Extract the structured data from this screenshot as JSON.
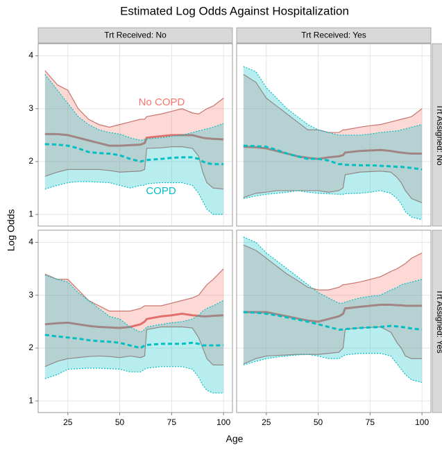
{
  "chart_data": {
    "type": "band",
    "title": "Estimated Log Odds Against Hospitalization",
    "xlabel": "Age",
    "ylabel": "Log Odds",
    "col_labels": [
      "Trt Received: No",
      "Trt Received: Yes"
    ],
    "row_labels": [
      "Trt Assigned: No",
      "Trt Assigned: Yes"
    ],
    "xlim": [
      10.7,
      104.3
    ],
    "xticks": [
      25,
      50,
      75,
      100
    ],
    "ylim": [
      0.78,
      4.23
    ],
    "yticks": [
      1,
      2,
      3,
      4
    ],
    "grid": true,
    "series": [
      {
        "name": "No COPD",
        "color": "#f8766d"
      },
      {
        "name": "COPD",
        "color": "#00bfc4"
      }
    ],
    "x": [
      14,
      20,
      25,
      30,
      35,
      40,
      45,
      50,
      55,
      60,
      62,
      63,
      70,
      75,
      80,
      85,
      88,
      90,
      92,
      95,
      100
    ],
    "panels": [
      {
        "groups": [
          {
            "estimate": [
              2.52,
              2.52,
              2.5,
              2.45,
              2.4,
              2.35,
              2.3,
              2.3,
              2.31,
              2.32,
              2.35,
              2.45,
              2.48,
              2.5,
              2.5,
              2.5,
              2.47,
              2.45,
              2.44,
              2.43,
              2.42
            ],
            "upper": [
              3.72,
              3.45,
              3.35,
              3.0,
              2.8,
              2.7,
              2.65,
              2.7,
              2.75,
              2.8,
              2.8,
              2.85,
              2.9,
              2.95,
              3.0,
              2.92,
              2.9,
              2.95,
              3.0,
              3.05,
              3.2
            ],
            "lower": [
              1.72,
              1.8,
              1.85,
              1.85,
              1.85,
              1.85,
              1.83,
              1.8,
              1.81,
              1.82,
              1.85,
              2.25,
              2.26,
              2.28,
              2.28,
              2.25,
              2.1,
              1.8,
              1.6,
              1.5,
              1.48
            ]
          },
          {
            "estimate": [
              2.33,
              2.32,
              2.3,
              2.25,
              2.18,
              2.16,
              2.15,
              2.12,
              2.05,
              2.0,
              2.02,
              2.03,
              2.05,
              2.07,
              2.08,
              2.08,
              2.05,
              2.0,
              1.97,
              1.95,
              1.95
            ],
            "upper": [
              3.65,
              3.35,
              3.1,
              2.85,
              2.7,
              2.6,
              2.55,
              2.52,
              2.45,
              2.4,
              2.42,
              2.43,
              2.45,
              2.48,
              2.5,
              2.55,
              2.58,
              2.6,
              2.62,
              2.65,
              2.72
            ],
            "lower": [
              1.48,
              1.55,
              1.6,
              1.62,
              1.62,
              1.61,
              1.6,
              1.55,
              1.5,
              1.55,
              1.55,
              1.58,
              1.6,
              1.6,
              1.6,
              1.55,
              1.4,
              1.25,
              1.1,
              1.0,
              1.0
            ]
          }
        ]
      },
      {
        "groups": [
          {
            "estimate": [
              2.28,
              2.27,
              2.25,
              2.2,
              2.15,
              2.1,
              2.07,
              2.05,
              2.08,
              2.1,
              2.12,
              2.17,
              2.2,
              2.21,
              2.22,
              2.2,
              2.18,
              2.17,
              2.16,
              2.15,
              2.15
            ],
            "upper": [
              3.65,
              3.5,
              3.2,
              3.05,
              2.9,
              2.75,
              2.6,
              2.6,
              2.55,
              2.55,
              2.6,
              2.6,
              2.65,
              2.68,
              2.7,
              2.75,
              2.78,
              2.8,
              2.82,
              2.85,
              3.0
            ],
            "lower": [
              1.32,
              1.4,
              1.42,
              1.45,
              1.45,
              1.45,
              1.45,
              1.45,
              1.42,
              1.45,
              1.5,
              1.75,
              1.8,
              1.81,
              1.82,
              1.8,
              1.7,
              1.6,
              1.45,
              1.3,
              1.22
            ]
          },
          {
            "estimate": [
              2.3,
              2.29,
              2.28,
              2.22,
              2.15,
              2.1,
              2.05,
              2.05,
              2.02,
              1.95,
              1.95,
              1.94,
              1.93,
              1.93,
              1.92,
              1.91,
              1.9,
              1.9,
              1.89,
              1.88,
              1.85
            ],
            "upper": [
              3.8,
              3.7,
              3.4,
              3.2,
              3.0,
              2.85,
              2.7,
              2.6,
              2.55,
              2.5,
              2.5,
              2.5,
              2.5,
              2.52,
              2.55,
              2.57,
              2.58,
              2.6,
              2.62,
              2.65,
              2.7
            ],
            "lower": [
              1.3,
              1.35,
              1.38,
              1.4,
              1.42,
              1.45,
              1.42,
              1.4,
              1.39,
              1.38,
              1.38,
              1.39,
              1.4,
              1.42,
              1.45,
              1.4,
              1.3,
              1.2,
              1.05,
              0.95,
              0.9
            ]
          }
        ]
      },
      {
        "groups": [
          {
            "estimate": [
              2.45,
              2.47,
              2.48,
              2.45,
              2.42,
              2.4,
              2.39,
              2.38,
              2.4,
              2.45,
              2.5,
              2.55,
              2.6,
              2.62,
              2.65,
              2.62,
              2.61,
              2.6,
              2.6,
              2.61,
              2.62
            ],
            "upper": [
              3.4,
              3.3,
              3.3,
              3.1,
              2.9,
              2.8,
              2.7,
              2.7,
              2.7,
              2.75,
              2.8,
              2.8,
              2.8,
              2.85,
              2.9,
              2.95,
              3.0,
              3.1,
              3.2,
              3.3,
              3.5
            ],
            "lower": [
              1.65,
              1.75,
              1.8,
              1.82,
              1.84,
              1.85,
              1.84,
              1.82,
              1.85,
              1.82,
              1.85,
              2.35,
              2.4,
              2.4,
              2.4,
              2.38,
              2.2,
              2.0,
              1.8,
              1.68,
              1.68
            ]
          },
          {
            "estimate": [
              2.25,
              2.22,
              2.2,
              2.18,
              2.15,
              2.13,
              2.12,
              2.1,
              2.05,
              2.0,
              2.05,
              2.06,
              2.08,
              2.08,
              2.08,
              2.1,
              2.08,
              2.05,
              2.05,
              2.05,
              2.05
            ],
            "upper": [
              3.38,
              3.3,
              3.25,
              3.05,
              2.9,
              2.75,
              2.6,
              2.55,
              2.4,
              2.3,
              2.35,
              2.4,
              2.45,
              2.48,
              2.5,
              2.55,
              2.62,
              2.7,
              2.75,
              2.8,
              2.9
            ],
            "lower": [
              1.42,
              1.5,
              1.6,
              1.61,
              1.62,
              1.62,
              1.61,
              1.6,
              1.55,
              1.55,
              1.6,
              1.62,
              1.65,
              1.65,
              1.65,
              1.6,
              1.45,
              1.3,
              1.2,
              1.15,
              1.15
            ]
          }
        ]
      },
      {
        "groups": [
          {
            "estimate": [
              2.68,
              2.68,
              2.68,
              2.64,
              2.6,
              2.56,
              2.52,
              2.5,
              2.55,
              2.6,
              2.65,
              2.75,
              2.78,
              2.8,
              2.82,
              2.82,
              2.81,
              2.81,
              2.8,
              2.8,
              2.8
            ],
            "upper": [
              3.95,
              3.85,
              3.7,
              3.55,
              3.4,
              3.28,
              3.15,
              3.1,
              3.1,
              3.15,
              3.2,
              3.2,
              3.25,
              3.3,
              3.35,
              3.45,
              3.5,
              3.55,
              3.6,
              3.7,
              3.8
            ],
            "lower": [
              1.7,
              1.8,
              1.85,
              1.86,
              1.87,
              1.88,
              1.88,
              1.88,
              1.9,
              1.92,
              2.0,
              2.35,
              2.38,
              2.39,
              2.4,
              2.3,
              2.1,
              2.0,
              1.85,
              1.8,
              1.8
            ]
          },
          {
            "estimate": [
              2.68,
              2.67,
              2.65,
              2.62,
              2.58,
              2.54,
              2.5,
              2.45,
              2.4,
              2.35,
              2.35,
              2.36,
              2.38,
              2.39,
              2.4,
              2.42,
              2.41,
              2.4,
              2.39,
              2.37,
              2.35
            ],
            "upper": [
              4.1,
              4.0,
              3.8,
              3.65,
              3.5,
              3.35,
              3.2,
              3.05,
              2.95,
              2.85,
              2.85,
              2.87,
              2.95,
              2.98,
              3.0,
              3.1,
              3.15,
              3.2,
              3.22,
              3.25,
              3.3
            ],
            "lower": [
              1.68,
              1.75,
              1.8,
              1.83,
              1.85,
              1.87,
              1.88,
              1.85,
              1.8,
              1.8,
              1.85,
              1.87,
              1.9,
              1.9,
              1.9,
              1.85,
              1.7,
              1.6,
              1.5,
              1.4,
              1.35
            ]
          }
        ]
      }
    ]
  }
}
